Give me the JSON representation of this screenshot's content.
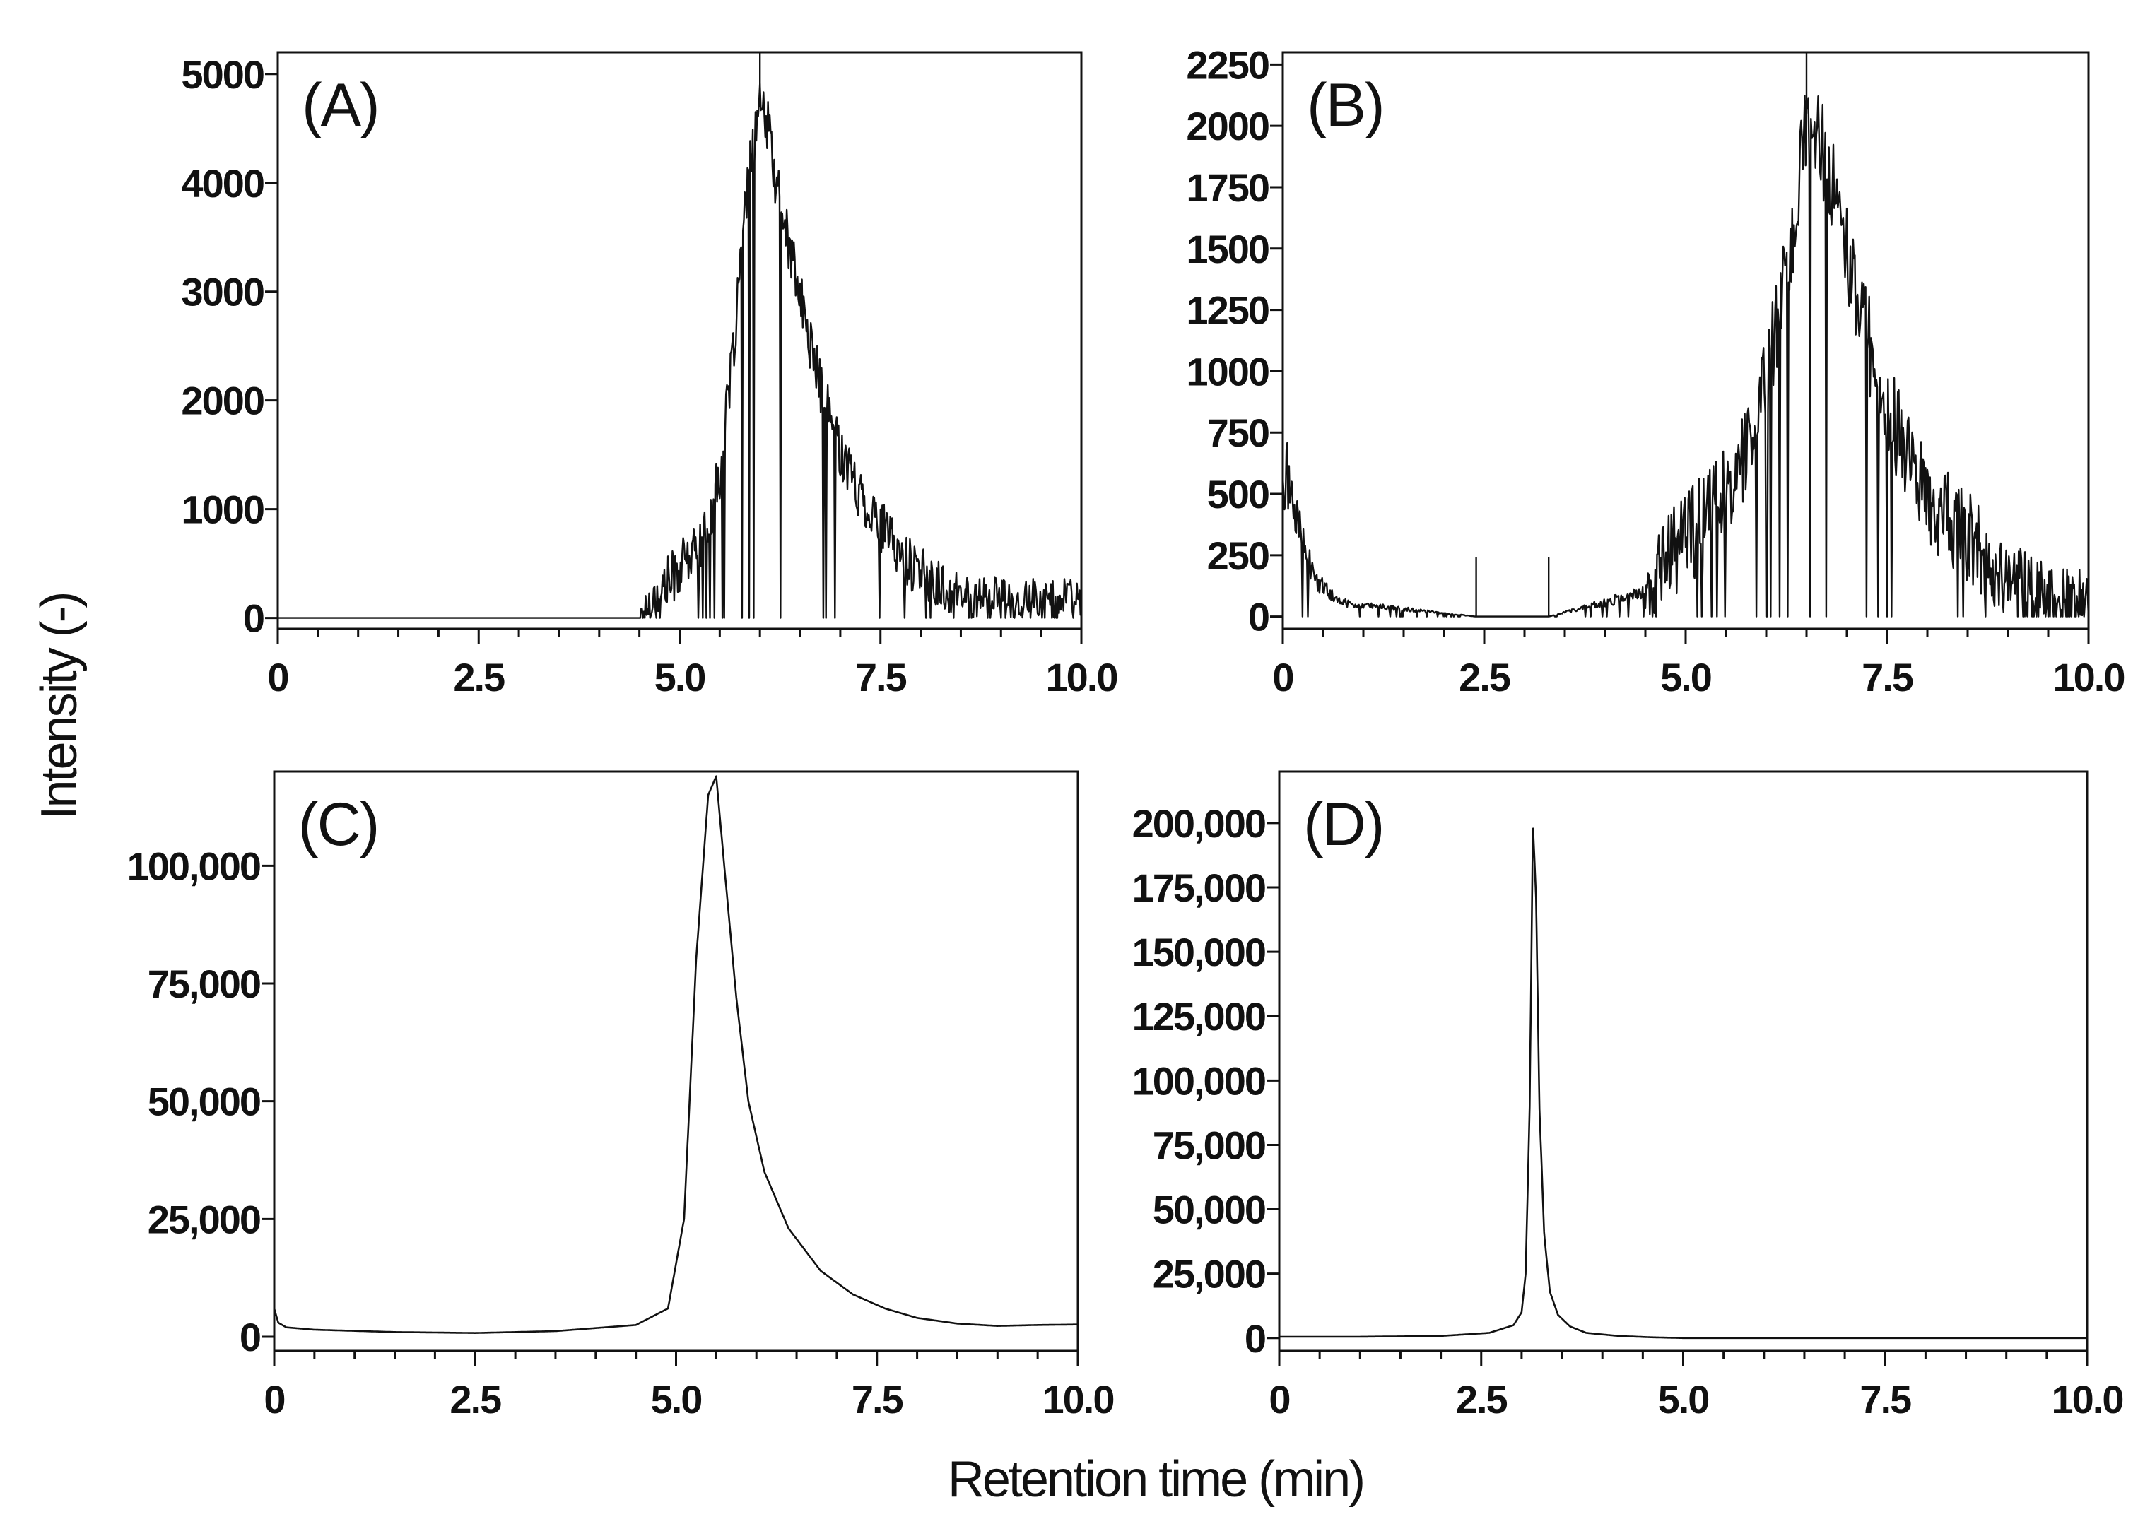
{
  "figure": {
    "xlabel": "Retention time (min)",
    "ylabel": "Intensity (-)"
  },
  "chart_data": [
    {
      "type": "line",
      "panel": "(A)",
      "xlabel": "Retention time (min)",
      "ylabel": "Intensity (-)",
      "xlim": [
        0,
        10
      ],
      "ylim": [
        -100,
        5200
      ],
      "xticks": [
        0,
        2.5,
        5.0,
        7.5,
        10.0
      ],
      "xtick_labels": [
        "0",
        "2.5",
        "5.0",
        "7.5",
        "10.0"
      ],
      "yticks": [
        0,
        1000,
        2000,
        3000,
        4000,
        5000
      ],
      "ytick_labels": [
        "0",
        "1000",
        "2000",
        "3000",
        "4000",
        "5000"
      ],
      "series": [
        {
          "name": "A",
          "noisy": true,
          "noise_from": 4.5,
          "noise_amp": 250,
          "x": [
            0,
            4.5,
            4.7,
            5.0,
            5.3,
            5.5,
            5.65,
            5.8,
            5.9,
            6.0,
            6.1,
            6.2,
            6.4,
            6.6,
            6.8,
            7.0,
            7.2,
            7.5,
            7.8,
            8.1,
            8.5,
            9.0,
            9.5,
            10.0
          ],
          "y": [
            0,
            0,
            200,
            450,
            700,
            1300,
            2300,
            3600,
            4300,
            4700,
            4500,
            4000,
            3300,
            2600,
            2000,
            1550,
            1200,
            850,
            550,
            350,
            200,
            180,
            170,
            170
          ]
        }
      ]
    },
    {
      "type": "line",
      "panel": "(B)",
      "xlabel": "Retention time (min)",
      "ylabel": "Intensity (-)",
      "xlim": [
        0,
        10
      ],
      "ylim": [
        -50,
        2300
      ],
      "xticks": [
        0,
        2.5,
        5.0,
        7.5,
        10.0
      ],
      "xtick_labels": [
        "0",
        "2.5",
        "5.0",
        "7.5",
        "10.0"
      ],
      "yticks": [
        0,
        250,
        500,
        750,
        1000,
        1250,
        1500,
        1750,
        2000,
        2250
      ],
      "ytick_labels": [
        "0",
        "250",
        "500",
        "750",
        "1000",
        "1250",
        "1500",
        "1750",
        "2000",
        "2250"
      ],
      "series": [
        {
          "name": "B",
          "noisy": true,
          "noise_from": 4.5,
          "noise_amp": 200,
          "x": [
            0,
            0.15,
            0.4,
            0.7,
            1.2,
            2.4,
            3.3,
            4.5,
            4.8,
            5.2,
            5.5,
            5.8,
            6.0,
            6.2,
            6.4,
            6.5,
            6.6,
            6.8,
            7.0,
            7.2,
            7.5,
            7.8,
            8.1,
            8.4,
            8.8,
            9.2,
            9.6,
            10.0
          ],
          "y": [
            650,
            400,
            150,
            60,
            40,
            0,
            0,
            100,
            250,
            380,
            500,
            700,
            950,
            1300,
            1750,
            2050,
            2000,
            1800,
            1500,
            1200,
            850,
            600,
            450,
            350,
            200,
            120,
            80,
            60
          ]
        }
      ]
    },
    {
      "type": "line",
      "panel": "(C)",
      "xlabel": "Retention time (min)",
      "ylabel": "Intensity (-)",
      "xlim": [
        0,
        10
      ],
      "ylim": [
        -3000,
        120000
      ],
      "xticks": [
        0,
        2.5,
        5.0,
        7.5,
        10.0
      ],
      "xtick_labels": [
        "0",
        "2.5",
        "5.0",
        "7.5",
        "10.0"
      ],
      "yticks": [
        0,
        25000,
        50000,
        75000,
        100000
      ],
      "ytick_labels": [
        "0",
        "25,000",
        "50,000",
        "75,000",
        "100,000"
      ],
      "series": [
        {
          "name": "C",
          "noisy": false,
          "x": [
            0,
            0.05,
            0.15,
            0.5,
            1.5,
            2.5,
            3.5,
            4.5,
            4.9,
            5.1,
            5.25,
            5.4,
            5.5,
            5.6,
            5.75,
            5.9,
            6.1,
            6.4,
            6.8,
            7.2,
            7.6,
            8.0,
            8.5,
            9.0,
            9.5,
            10.0
          ],
          "y": [
            6000,
            3000,
            2000,
            1500,
            1000,
            800,
            1200,
            2500,
            6000,
            25000,
            80000,
            115000,
            119000,
            100000,
            72000,
            50000,
            35000,
            23000,
            14000,
            9000,
            6000,
            4000,
            2800,
            2300,
            2500,
            2600
          ]
        }
      ]
    },
    {
      "type": "line",
      "panel": "(D)",
      "xlabel": "Retention time (min)",
      "ylabel": "Intensity (-)",
      "xlim": [
        0,
        10
      ],
      "ylim": [
        -5000,
        220000
      ],
      "xticks": [
        0,
        2.5,
        5.0,
        7.5,
        10.0
      ],
      "xtick_labels": [
        "0",
        "2.5",
        "5.0",
        "7.5",
        "10.0"
      ],
      "yticks": [
        0,
        25000,
        50000,
        75000,
        100000,
        125000,
        150000,
        175000,
        200000
      ],
      "ytick_labels": [
        "0",
        "25,000",
        "50,000",
        "75,000",
        "100,000",
        "125,000",
        "150,000",
        "175,000",
        "200,000"
      ],
      "series": [
        {
          "name": "D",
          "noisy": false,
          "x": [
            0,
            1.0,
            2.0,
            2.6,
            2.9,
            3.0,
            3.05,
            3.1,
            3.14,
            3.18,
            3.22,
            3.28,
            3.35,
            3.45,
            3.6,
            3.8,
            4.2,
            4.6,
            5.0,
            7.5,
            10.0
          ],
          "y": [
            500,
            500,
            800,
            2000,
            5000,
            10000,
            25000,
            90000,
            200000,
            170000,
            90000,
            40000,
            18000,
            9000,
            4500,
            2000,
            800,
            300,
            0,
            0,
            0
          ]
        }
      ]
    }
  ]
}
